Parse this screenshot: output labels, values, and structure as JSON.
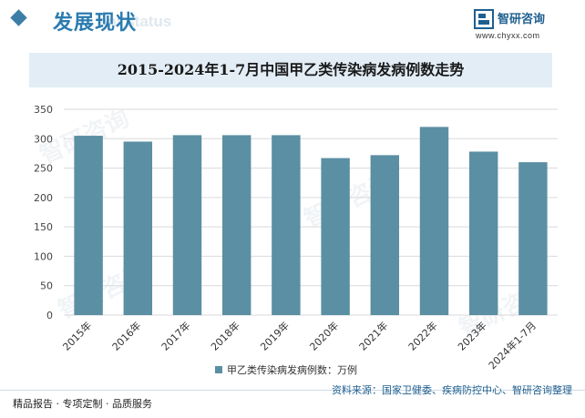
{
  "header": {
    "title": "发展现状",
    "bg_text": "ent status"
  },
  "brand": {
    "name": "智研咨询",
    "url": "www.chyxx.com",
    "watermark": "智研咨询"
  },
  "colors": {
    "bar": "#5b8fa3",
    "accent": "#2b7bb0",
    "title_bg": "#e2edf6",
    "grid": "#d9d9d9"
  },
  "chart_data": {
    "type": "bar",
    "title": "2015-2024年1-7月中国甲乙类传染病发病例数走势",
    "categories": [
      "2015年",
      "2016年",
      "2017年",
      "2018年",
      "2019年",
      "2020年",
      "2021年",
      "2022年",
      "2023年",
      "2024年1-7月"
    ],
    "series": [
      {
        "name": "甲乙类传染病发病例数：万例",
        "values": [
          305,
          295,
          306,
          306,
          306,
          267,
          272,
          320,
          278,
          260
        ]
      }
    ],
    "ylim": [
      0,
      350
    ],
    "yticks": [
      0,
      50,
      100,
      150,
      200,
      250,
      300,
      350
    ],
    "grid": true,
    "legend_position": "bottom"
  },
  "footer": {
    "left": "精品报告 · 专项定制 · 品质服务",
    "source": "资料来源：国家卫健委、疾病防控中心、智研咨询整理"
  }
}
